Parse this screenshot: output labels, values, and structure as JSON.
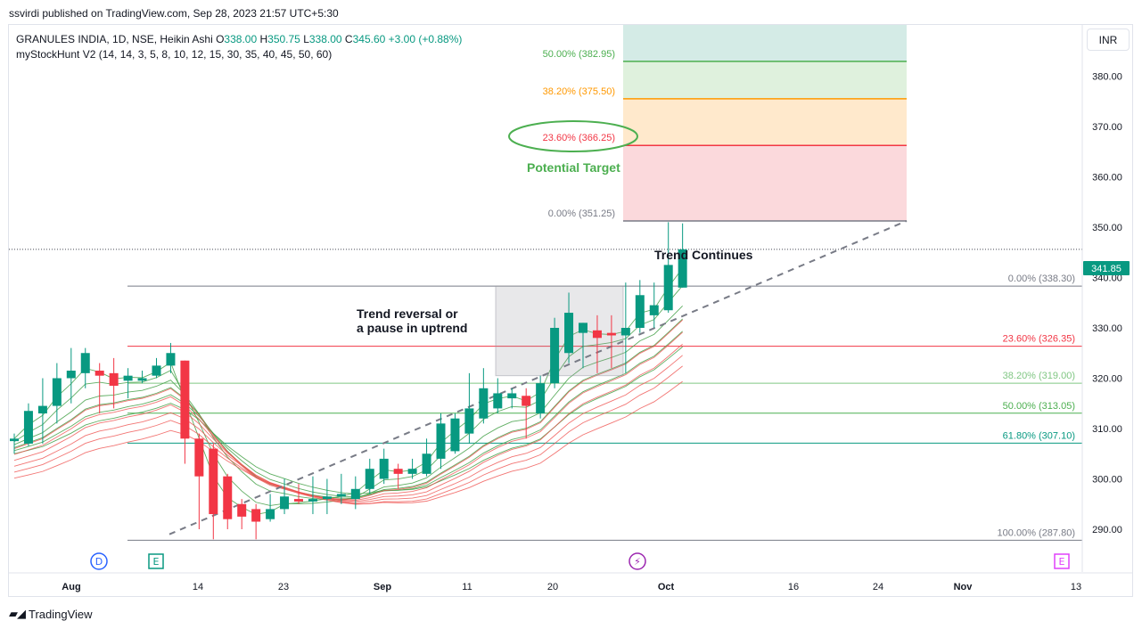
{
  "header": {
    "published": "ssvirdi published on TradingView.com, Sep 28, 2023 21:57 UTC+5:30"
  },
  "legend": {
    "symbol": "GRANULES INDIA, 1D, NSE, Heikin Ashi",
    "o_label": "O",
    "o_value": "338.00",
    "h_label": "H",
    "h_value": "350.75",
    "l_label": "L",
    "l_value": "338.00",
    "c_label": "C",
    "c_value": "345.60",
    "change": "+3.00 (+0.88%)",
    "indicator": "myStockHunt V2 (14, 14, 3, 5, 8, 10, 12, 15, 30, 35, 40, 45, 50, 60)"
  },
  "currency": "INR",
  "footer": {
    "brand": "TradingView"
  },
  "colors": {
    "up": "#089981",
    "down": "#f23645",
    "emaShort": "#43a047",
    "emaLong": "#ef5350",
    "fibTarget23": "#f23645",
    "fibTarget38": "#ff9800",
    "fibTarget50": "#4caf50",
    "annotationGreen": "#4caf50",
    "priceTag": "#089981"
  },
  "chart_data": {
    "type": "candlestick",
    "style": "Heikin Ashi",
    "ylim": [
      282,
      392
    ],
    "y_ticks": [
      "290.00",
      "300.00",
      "310.00",
      "320.00",
      "330.00",
      "340.00",
      "350.00",
      "360.00",
      "370.00",
      "380.00"
    ],
    "x_ticks": [
      "Aug",
      "14",
      "23",
      "Sep",
      "11",
      "20",
      "Oct",
      "16",
      "24",
      "Nov",
      "13"
    ],
    "last_price_label": "341.85",
    "candles": [
      {
        "o": 307.5,
        "h": 309.0,
        "l": 305.0,
        "c": 308.0
      },
      {
        "o": 307.0,
        "h": 315.0,
        "l": 306.5,
        "c": 313.5
      },
      {
        "o": 313.0,
        "h": 320.0,
        "l": 307.0,
        "c": 314.5
      },
      {
        "o": 314.5,
        "h": 323.0,
        "l": 311.0,
        "c": 320.0
      },
      {
        "o": 320.0,
        "h": 326.0,
        "l": 315.0,
        "c": 321.5
      },
      {
        "o": 321.0,
        "h": 326.0,
        "l": 318.0,
        "c": 325.0
      },
      {
        "o": 321.5,
        "h": 323.0,
        "l": 313.0,
        "c": 320.5
      },
      {
        "o": 321.0,
        "h": 324.0,
        "l": 314.0,
        "c": 318.5
      },
      {
        "o": 319.5,
        "h": 322.0,
        "l": 316.0,
        "c": 320.5
      },
      {
        "o": 319.5,
        "h": 321.5,
        "l": 319.0,
        "c": 320.0
      },
      {
        "o": 320.5,
        "h": 324.0,
        "l": 320.0,
        "c": 322.5
      },
      {
        "o": 322.5,
        "h": 327.0,
        "l": 321.0,
        "c": 325.0
      },
      {
        "o": 323.5,
        "h": 323.5,
        "l": 303.0,
        "c": 308.0
      },
      {
        "o": 308.0,
        "h": 309.0,
        "l": 290.0,
        "c": 300.5
      },
      {
        "o": 306.0,
        "h": 307.0,
        "l": 288.0,
        "c": 293.0
      },
      {
        "o": 300.5,
        "h": 301.0,
        "l": 290.0,
        "c": 292.0
      },
      {
        "o": 295.0,
        "h": 296.0,
        "l": 290.0,
        "c": 292.5
      },
      {
        "o": 294.0,
        "h": 295.0,
        "l": 288.0,
        "c": 291.5
      },
      {
        "o": 292.0,
        "h": 297.0,
        "l": 291.5,
        "c": 294.0
      },
      {
        "o": 294.0,
        "h": 300.0,
        "l": 293.0,
        "c": 296.5
      },
      {
        "o": 296.0,
        "h": 299.0,
        "l": 295.0,
        "c": 295.5
      },
      {
        "o": 295.5,
        "h": 300.5,
        "l": 293.0,
        "c": 296.0
      },
      {
        "o": 296.0,
        "h": 300.0,
        "l": 293.0,
        "c": 296.5
      },
      {
        "o": 296.5,
        "h": 301.0,
        "l": 295.0,
        "c": 297.0
      },
      {
        "o": 296.0,
        "h": 300.5,
        "l": 294.0,
        "c": 298.0
      },
      {
        "o": 298.0,
        "h": 304.0,
        "l": 297.0,
        "c": 302.0
      },
      {
        "o": 300.0,
        "h": 306.0,
        "l": 299.0,
        "c": 304.0
      },
      {
        "o": 302.0,
        "h": 303.0,
        "l": 298.0,
        "c": 301.0
      },
      {
        "o": 301.0,
        "h": 304.0,
        "l": 300.0,
        "c": 302.0
      },
      {
        "o": 301.0,
        "h": 308.0,
        "l": 300.5,
        "c": 305.0
      },
      {
        "o": 304.0,
        "h": 313.0,
        "l": 302.0,
        "c": 311.0
      },
      {
        "o": 305.5,
        "h": 313.0,
        "l": 305.0,
        "c": 312.0
      },
      {
        "o": 309.0,
        "h": 321.0,
        "l": 307.0,
        "c": 314.0
      },
      {
        "o": 312.0,
        "h": 322.0,
        "l": 311.0,
        "c": 318.0
      },
      {
        "o": 314.0,
        "h": 320.0,
        "l": 313.0,
        "c": 317.0
      },
      {
        "o": 316.0,
        "h": 318.0,
        "l": 314.0,
        "c": 317.0
      },
      {
        "o": 316.5,
        "h": 318.0,
        "l": 308.0,
        "c": 314.5
      },
      {
        "o": 313.0,
        "h": 320.5,
        "l": 312.0,
        "c": 319.0
      },
      {
        "o": 319.0,
        "h": 332.0,
        "l": 318.0,
        "c": 330.0
      },
      {
        "o": 325.0,
        "h": 337.0,
        "l": 323.0,
        "c": 333.0
      },
      {
        "o": 329.0,
        "h": 331.0,
        "l": 322.0,
        "c": 331.0
      },
      {
        "o": 329.5,
        "h": 332.5,
        "l": 321.0,
        "c": 328.0
      },
      {
        "o": 329.0,
        "h": 332.5,
        "l": 322.0,
        "c": 328.5
      },
      {
        "o": 328.5,
        "h": 339.0,
        "l": 321.0,
        "c": 330.0
      },
      {
        "o": 330.0,
        "h": 339.5,
        "l": 329.0,
        "c": 336.5
      },
      {
        "o": 332.5,
        "h": 339.0,
        "l": 330.0,
        "c": 334.5
      },
      {
        "o": 333.5,
        "h": 351.0,
        "l": 333.0,
        "c": 342.5
      },
      {
        "o": 338.0,
        "h": 350.75,
        "l": 338.0,
        "c": 345.6
      }
    ],
    "fib_lower": [
      {
        "label": "0.00% (338.30)",
        "value": 338.3
      },
      {
        "label": "23.60% (326.35)",
        "value": 326.35
      },
      {
        "label": "38.20% (319.00)",
        "value": 319.0
      },
      {
        "label": "50.00% (313.05)",
        "value": 313.05
      },
      {
        "label": "61.80% (307.10)",
        "value": 307.1
      },
      {
        "label": "100.00% (287.80)",
        "value": 287.8
      }
    ],
    "fib_upper": [
      {
        "label": "0.00% (351.25)",
        "value": 351.25
      },
      {
        "label": "23.60% (366.25)",
        "value": 366.25
      },
      {
        "label": "38.20% (375.50)",
        "value": 375.5
      },
      {
        "label": "50.00% (382.95)",
        "value": 382.95
      }
    ],
    "annotations": {
      "trend_reversal_1": "Trend reversal or",
      "trend_reversal_2": "a pause in uptrend",
      "trend_continues": "Trend Continues",
      "potential_target": "Potential Target"
    },
    "event_markers": [
      "D",
      "E",
      "⚡",
      "E"
    ]
  }
}
